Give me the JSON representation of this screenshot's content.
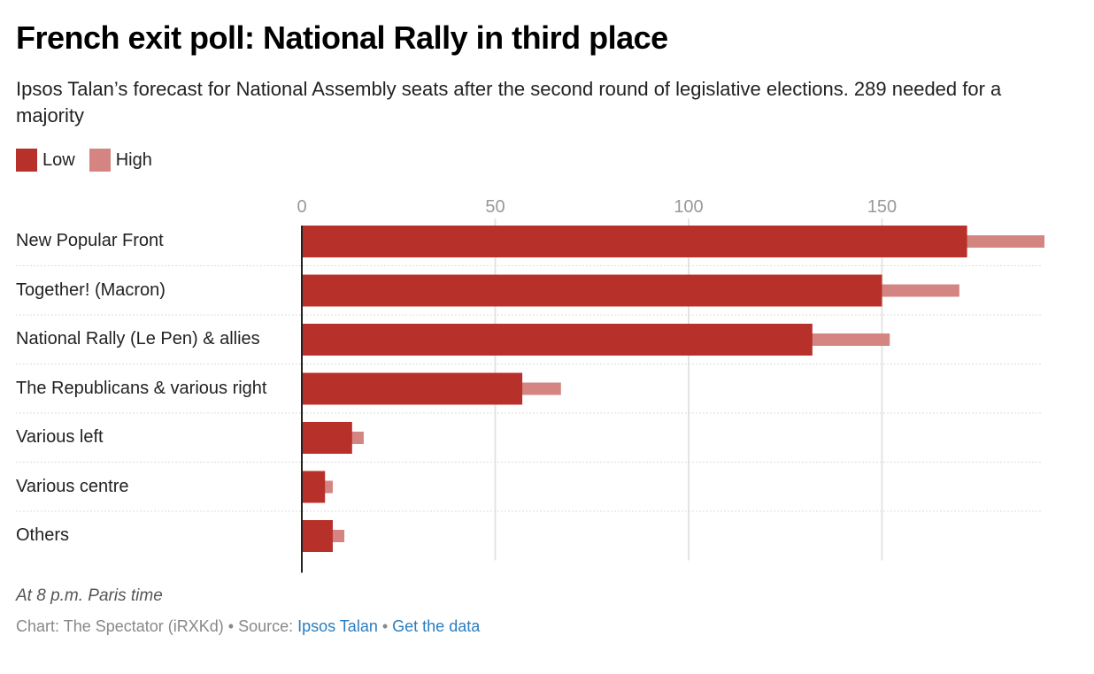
{
  "header": {
    "title": "French exit poll: National Rally in third place",
    "subtitle": "Ipsos Talan’s forecast for National Assembly seats after the second round of legislative elections. 289 needed for a majority"
  },
  "legend": [
    {
      "label": "Low",
      "color": "#b8302a"
    },
    {
      "label": "High",
      "color": "#d48582"
    }
  ],
  "chart_data": {
    "type": "bar",
    "orientation": "horizontal",
    "title": "French exit poll: National Rally in third place",
    "xlabel": "",
    "ylabel": "",
    "xlim": [
      0,
      192
    ],
    "ticks": [
      0,
      50,
      100,
      150
    ],
    "tick_labels": [
      "0",
      "50",
      "100",
      "150"
    ],
    "grid": true,
    "legend_position": "top-left",
    "categories": [
      "New Popular Front",
      "Together! (Macron)",
      "National Rally (Le Pen) & allies",
      "The Republicans & various right",
      "Various left",
      "Various centre",
      "Others"
    ],
    "series": [
      {
        "name": "Low",
        "color": "#b8302a",
        "values": [
          172,
          150,
          132,
          57,
          13,
          6,
          8
        ]
      },
      {
        "name": "High",
        "color": "#d48582",
        "values": [
          192,
          170,
          152,
          67,
          16,
          8,
          11
        ]
      }
    ]
  },
  "footer": {
    "note": "At 8 p.m. Paris time",
    "credit": "Chart: The Spectator (iRXKd) • Source: ",
    "source_link": "Ipsos Talan",
    "separator": " • ",
    "data_link": "Get the data"
  }
}
